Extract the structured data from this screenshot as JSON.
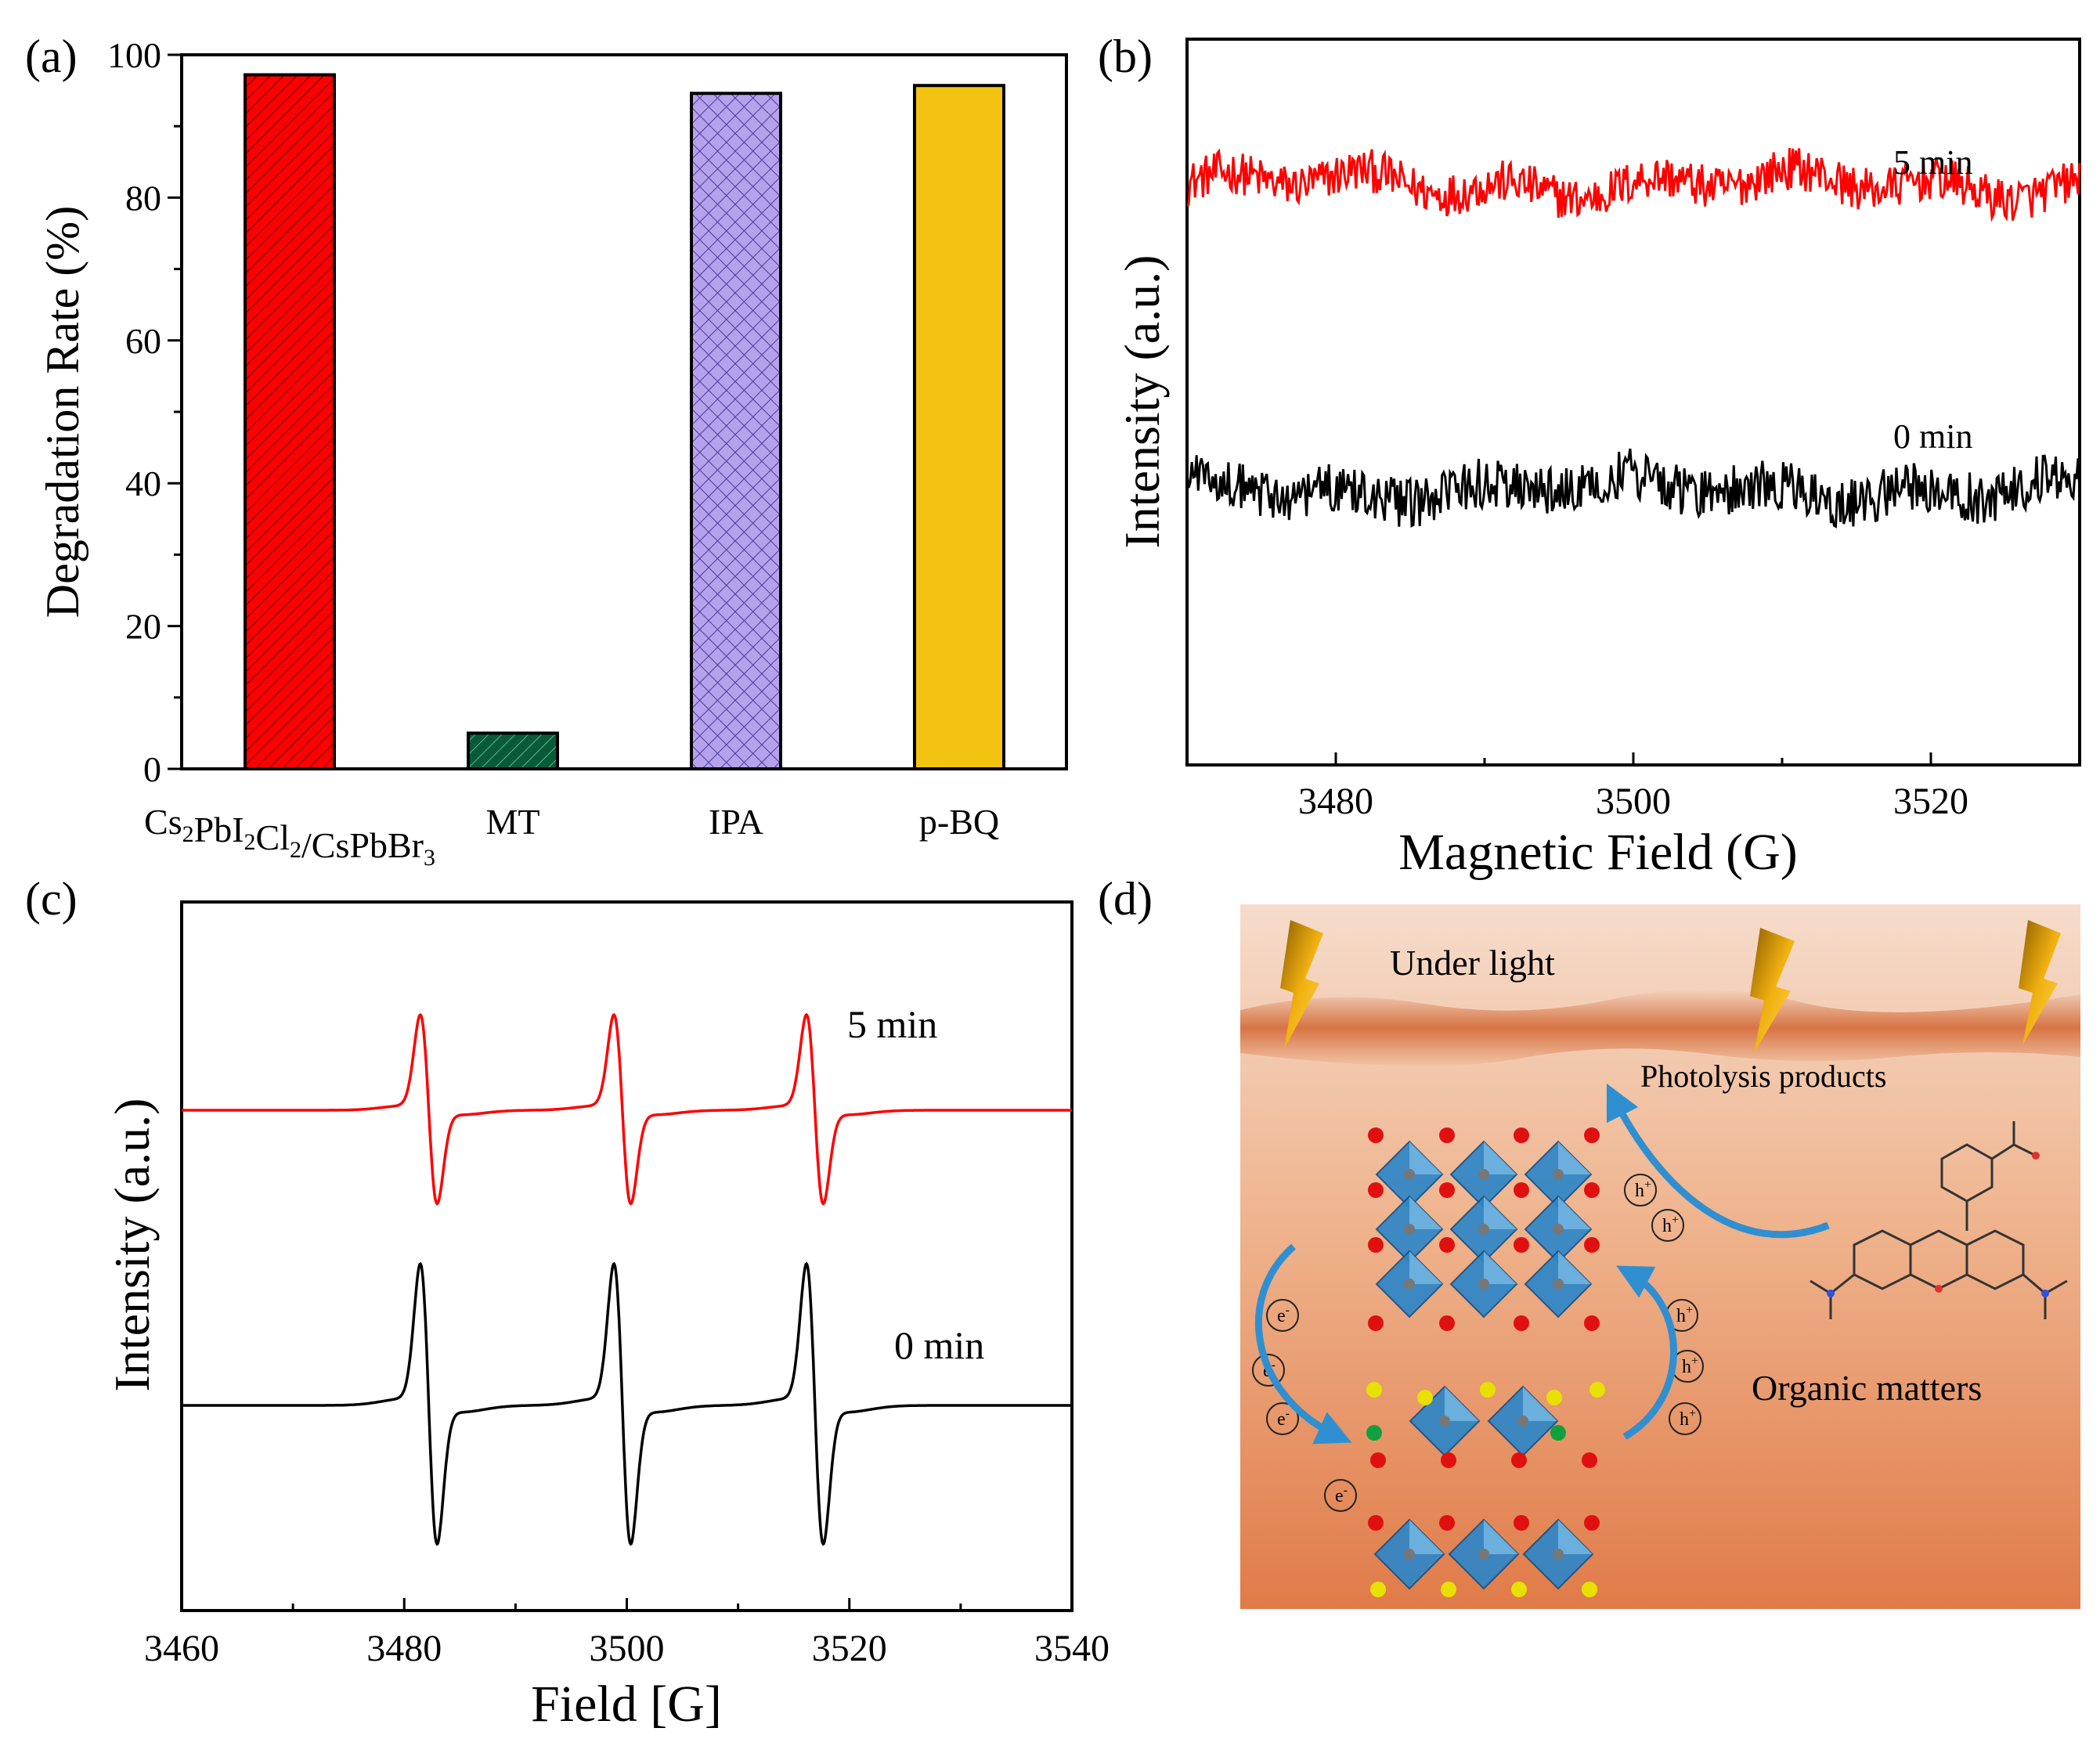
{
  "colors": {
    "red": "#ff0000",
    "dark_green": "#0a5a3a",
    "lavender": "#b4a2ec",
    "gold": "#f2c311",
    "black": "#000000",
    "surface_orange": "#d46a38",
    "water_top": "#f6dccb",
    "water_bottom": "#e07b48",
    "octahedron_blue": "#2e86c8",
    "arrow_blue": "#2f8fd0",
    "bolt_gold": "#f0b010"
  },
  "panels": {
    "a": {
      "letter": "(a)"
    },
    "b": {
      "letter": "(b)"
    },
    "c": {
      "letter": "(c)"
    },
    "d": {
      "letter": "(d)"
    }
  },
  "chart_data": [
    {
      "panel": "a",
      "type": "bar",
      "categories": [
        "Cs2PbI2Cl2/CsPbBr3",
        "MT",
        "IPA",
        "p-BQ"
      ],
      "category_labels_rich": [
        [
          {
            "t": "Cs"
          },
          {
            "t": "2",
            "sub": true
          },
          {
            "t": "PbI"
          },
          {
            "t": "2",
            "sub": true
          },
          {
            "t": "Cl"
          },
          {
            "t": "2",
            "sub": true
          },
          {
            "t": "/CsPbBr"
          },
          {
            "t": "3",
            "sub": true
          }
        ],
        [
          {
            "t": "MT"
          }
        ],
        [
          {
            "t": "IPA"
          }
        ],
        [
          {
            "t": "p-BQ"
          }
        ]
      ],
      "values": [
        97.2,
        5.0,
        94.6,
        95.7
      ],
      "bar_colors": [
        "#ff0000",
        "#0a5a3a",
        "#b4a2ec",
        "#f2c311"
      ],
      "bar_patterns": [
        "diagonal",
        "diagonal",
        "crosshatch",
        "none"
      ],
      "ylabel": "Degradation Rate (%)",
      "ylim": [
        0,
        100
      ],
      "yticks": [
        0,
        20,
        40,
        60,
        80,
        100
      ]
    },
    {
      "panel": "b",
      "type": "line",
      "xlabel": "Magnetic Field (G)",
      "ylabel": "Intensity (a.u.)",
      "xlim": [
        3470,
        3530
      ],
      "xticks": [
        3480,
        3500,
        3520
      ],
      "series": [
        {
          "name": "5 min",
          "color": "#ff0000",
          "offset": 0.8,
          "noise": 0.06
        },
        {
          "name": "0 min",
          "color": "#000000",
          "offset": 0.38,
          "noise": 0.07
        }
      ]
    },
    {
      "panel": "c",
      "type": "line",
      "xlabel": "Field [G]",
      "ylabel": "Intensity (a.u.)",
      "xlim": [
        3460,
        3540
      ],
      "xticks": [
        3460,
        3480,
        3500,
        3520,
        3540
      ],
      "peak_centers": [
        3482.2,
        3499.6,
        3516.9
      ],
      "series": [
        {
          "name": "5 min",
          "color": "#ff0000",
          "amplitude": 0.65
        },
        {
          "name": "0 min",
          "color": "#000000",
          "amplitude": 1.0
        }
      ]
    }
  ],
  "diagram": {
    "under_light": "Under light",
    "photolysis": "Photolysis products",
    "organic": "Organic  matters",
    "electron": "e",
    "electron_sup": "-",
    "hole": "h",
    "hole_sup": "+"
  }
}
